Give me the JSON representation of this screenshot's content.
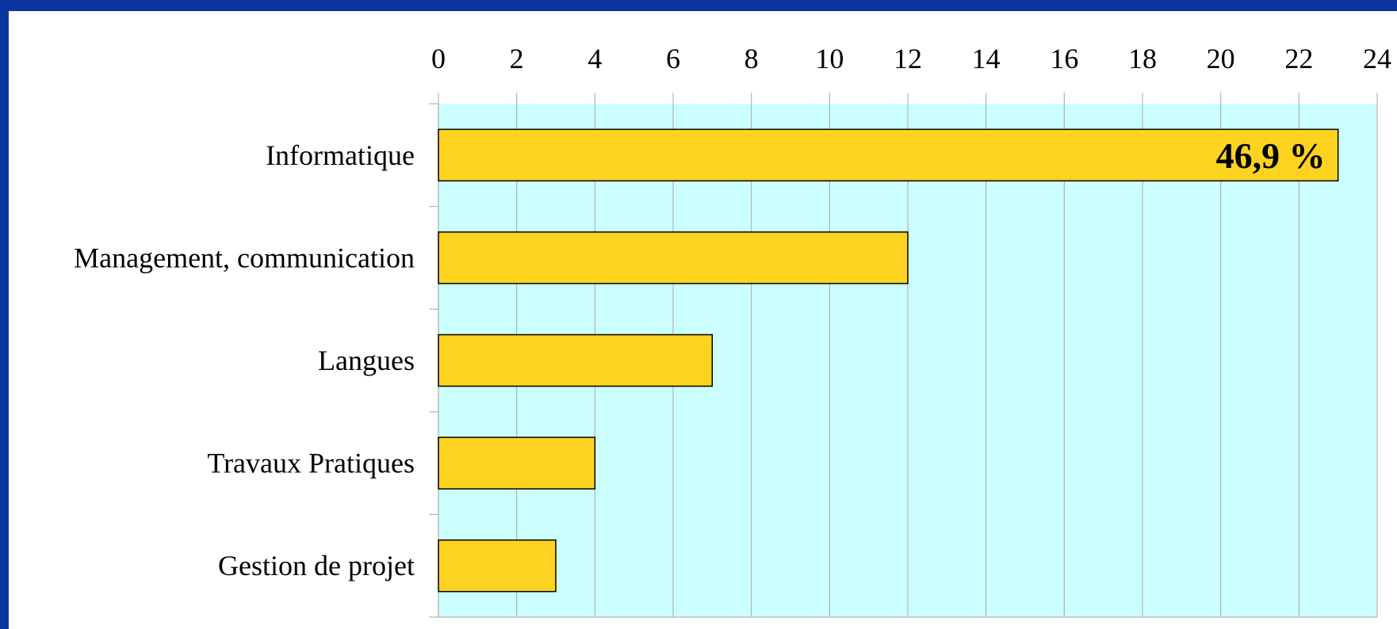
{
  "chart_data": {
    "type": "bar",
    "orientation": "horizontal",
    "categories": [
      "Informatique",
      "Management, communication",
      "Langues",
      "Travaux Pratiques",
      "Gestion de projet"
    ],
    "values": [
      23,
      12,
      7,
      4,
      3
    ],
    "xlim": [
      0,
      24
    ],
    "x_ticks": [
      0,
      2,
      4,
      6,
      8,
      10,
      12,
      14,
      16,
      18,
      20,
      22,
      24
    ],
    "x_axis_position": "top",
    "grid": true,
    "annotations": [
      {
        "category": "Informatique",
        "text": "46,9 %"
      }
    ],
    "colors": {
      "bar_fill": "#fdd320",
      "bar_stroke": "#000000",
      "plot_background": "#ccffff",
      "grid": "#b3b3b3",
      "frame": "#0a34a0"
    }
  }
}
